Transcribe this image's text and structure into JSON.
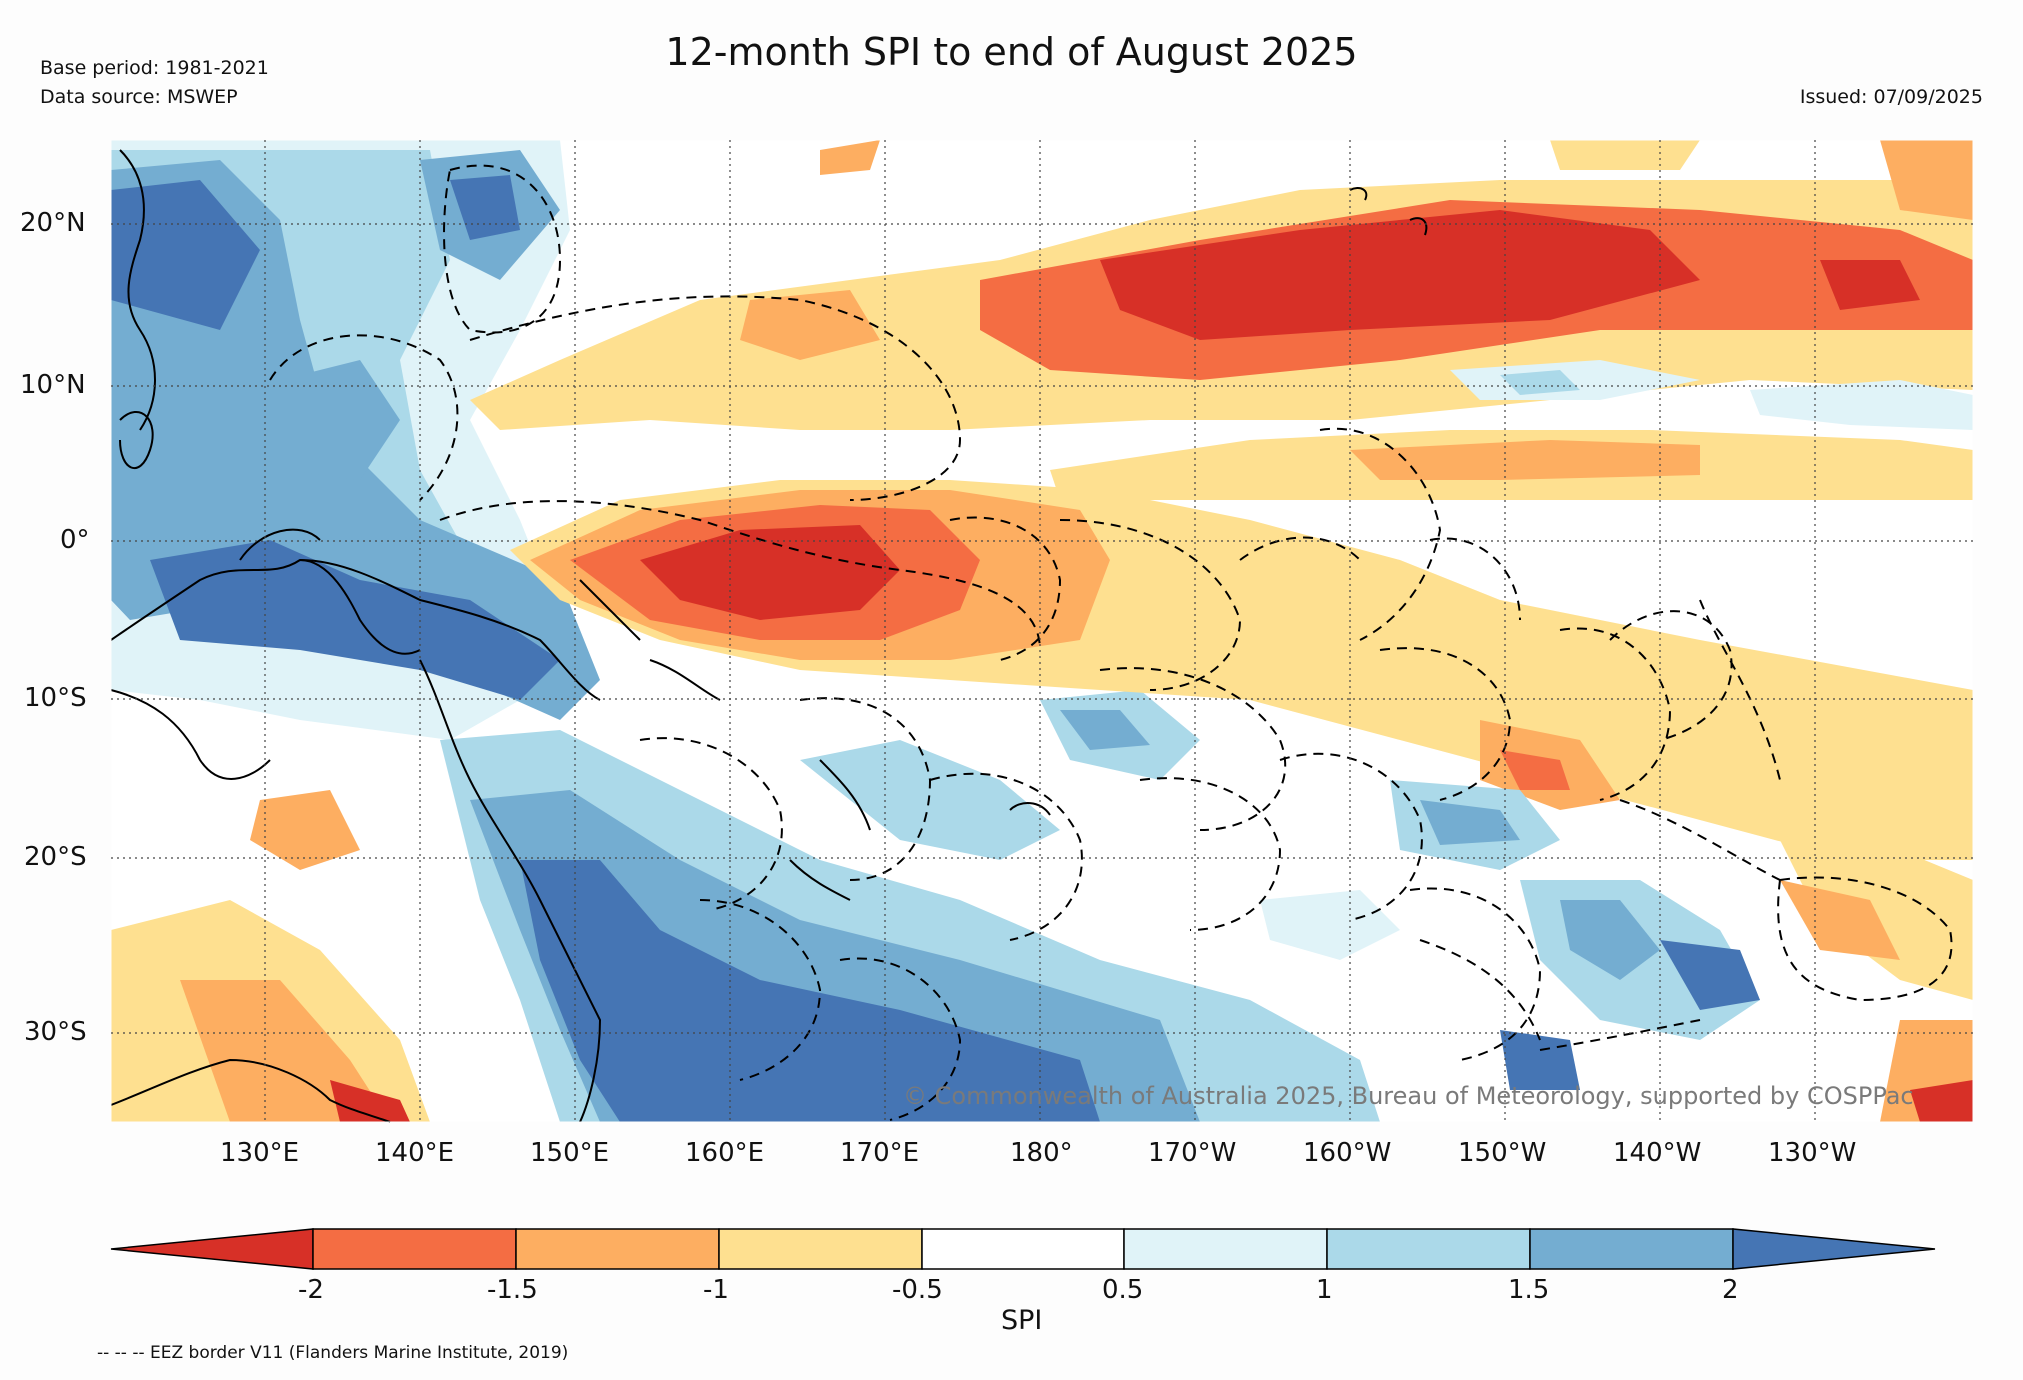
{
  "title": "12-month SPI to end of August 2025",
  "base_period": "Base period: 1981-2021",
  "data_source": "Data source: MSWEP",
  "issued": "Issued: 07/09/2025",
  "copyright": "© Commonwealth of Australia 2025, Bureau of Meteorology, supported by COSPPac",
  "footer": "-- -- -- EEZ border V11 (Flanders Marine Institute, 2019)",
  "map": {
    "lat_ticks": [
      "20°N",
      "10°N",
      "0°",
      "10°S",
      "20°S",
      "30°S"
    ],
    "lon_ticks": [
      "130°E",
      "140°E",
      "150°E",
      "160°E",
      "170°E",
      "180°",
      "170°W",
      "160°W",
      "150°W",
      "140°W",
      "130°W"
    ]
  },
  "colorbar": {
    "label": "SPI",
    "tick_labels": [
      "-2",
      "-1.5",
      "-1",
      "-0.5",
      "0.5",
      "1",
      "1.5",
      "2"
    ],
    "colors": [
      "#d73027",
      "#f46d43",
      "#fdae61",
      "#fee090",
      "#ffffff",
      "#e0f3f8",
      "#abd9e9",
      "#74add1",
      "#4575b4"
    ]
  }
}
